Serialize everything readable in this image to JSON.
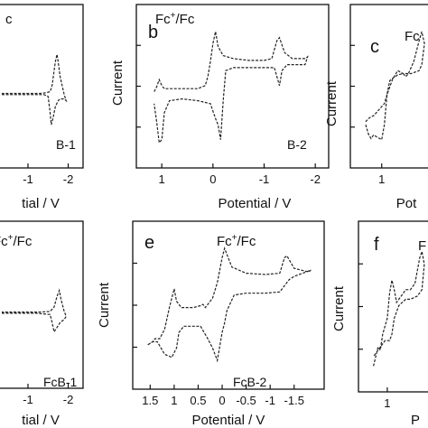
{
  "chart_data": [
    {
      "type": "line",
      "panel_letter": "",
      "legend_top": "c",
      "compound": "B-1",
      "xlabel": "tial / V",
      "ylabel": "",
      "x_ticks": [
        {
          "x": -1,
          "label": "-1"
        },
        {
          "x": -2,
          "label": "-2"
        }
      ],
      "xlim": [
        -0.35,
        -2.1
      ],
      "ylim": [
        -1,
        1
      ],
      "series": [
        {
          "x": [
            -0.35,
            -1.4,
            -1.5,
            -1.55,
            -1.58,
            -1.62,
            -1.68,
            -1.75,
            -1.8,
            -1.85,
            -1.9,
            -1.95,
            -1.9,
            -1.8,
            -1.75,
            -1.72,
            -1.68,
            -1.6,
            -1.55,
            -1.45,
            -1.3,
            -0.35
          ],
          "y": [
            -0.05,
            -0.05,
            -0.08,
            -0.35,
            -0.55,
            -0.45,
            -0.25,
            -0.15,
            -0.12,
            -0.12,
            -0.12,
            -0.15,
            -0.05,
            0.25,
            0.5,
            0.62,
            0.5,
            0.1,
            0.0,
            -0.02,
            -0.03,
            -0.03
          ]
        }
      ]
    },
    {
      "type": "line",
      "panel_letter": "b",
      "legend_top": "Fc+/Fc",
      "compound": "B-2",
      "xlabel": "Potential / V",
      "ylabel": "Current",
      "x_ticks": [
        {
          "x": 1,
          "label": "1"
        },
        {
          "x": 0,
          "label": "0"
        },
        {
          "x": -1,
          "label": "-1"
        },
        {
          "x": -2,
          "label": "-2"
        }
      ],
      "xlim": [
        1.25,
        -2.05
      ],
      "ylim": [
        -1,
        1
      ],
      "series": [
        {
          "x": [
            1.15,
            1.1,
            1.05,
            1.0,
            0.95,
            0.85,
            0.6,
            0.3,
            0.15,
            0.1,
            0.05,
            0.0,
            -0.05,
            -0.1,
            -0.2,
            -0.4,
            -0.7,
            -1.0,
            -1.15,
            -1.25,
            -1.3,
            -1.4,
            -1.55,
            -1.8,
            -1.85,
            -1.8,
            -1.6,
            -1.45,
            -1.35,
            -1.3,
            -1.2,
            -1.0,
            -0.7,
            -0.4,
            -0.25,
            -0.2,
            -0.15,
            -0.1,
            -0.05,
            0.05,
            0.3,
            0.6,
            0.85,
            0.95,
            1.0,
            1.05,
            1.1,
            1.15
          ],
          "y": [
            0.0,
            0.08,
            0.2,
            0.1,
            0.05,
            0.05,
            0.05,
            0.05,
            0.1,
            0.25,
            0.5,
            0.8,
            1.0,
            0.75,
            0.6,
            0.55,
            0.52,
            0.52,
            0.55,
            0.85,
            0.9,
            0.65,
            0.55,
            0.55,
            0.58,
            0.45,
            0.45,
            0.45,
            0.35,
            0.1,
            0.4,
            0.4,
            0.4,
            0.4,
            0.35,
            -0.15,
            -0.8,
            -0.55,
            -0.45,
            -0.2,
            -0.15,
            -0.12,
            -0.15,
            -0.35,
            -0.8,
            -0.85,
            -0.5,
            -0.2
          ]
        }
      ]
    },
    {
      "type": "line",
      "panel_letter": "c",
      "legend_top": "Fc",
      "compound": "",
      "xlabel": "Pot",
      "ylabel": "Current",
      "x_ticks": [
        {
          "x": 1,
          "label": "1"
        }
      ],
      "xlim": [
        1.35,
        0.1
      ],
      "ylim": [
        -1,
        1
      ],
      "series": [
        {
          "x": [
            1.3,
            1.25,
            1.2,
            1.15,
            1.1,
            1.0,
            0.95,
            0.9,
            0.85,
            0.8,
            0.7,
            0.6,
            0.55,
            0.5,
            0.4,
            0.3,
            0.25,
            0.2,
            0.25,
            0.3,
            0.45,
            0.6,
            0.7,
            0.8,
            0.9,
            0.95,
            1.0,
            1.1,
            1.15,
            1.2,
            1.25,
            1.3
          ],
          "y": [
            -0.55,
            -0.7,
            -0.78,
            -0.72,
            -0.75,
            -0.8,
            -0.55,
            -0.05,
            0.18,
            0.22,
            0.28,
            0.3,
            0.25,
            0.3,
            0.5,
            0.85,
            1.0,
            0.8,
            0.45,
            0.35,
            0.3,
            0.3,
            0.35,
            0.2,
            -0.05,
            -0.2,
            -0.25,
            -0.35,
            -0.4,
            -0.42,
            -0.45,
            -0.5
          ]
        }
      ]
    },
    {
      "type": "line",
      "panel_letter": "",
      "legend_top": "Fc+/Fc",
      "compound": "FcB-1",
      "xlabel": "tial / V",
      "ylabel": "",
      "x_ticks": [
        {
          "x": -1,
          "label": "-1"
        },
        {
          "x": -2,
          "label": "-2"
        }
      ],
      "xlim": [
        -0.35,
        -2.1
      ],
      "ylim": [
        -1,
        1
      ],
      "series": [
        {
          "x": [
            -0.35,
            -1.2,
            -1.55,
            -1.6,
            -1.65,
            -1.72,
            -1.8,
            -1.9,
            -1.95,
            -1.9,
            -1.82,
            -1.78,
            -1.72,
            -1.65,
            -1.55,
            -1.3,
            -0.35
          ],
          "y": [
            -0.05,
            -0.05,
            -0.07,
            -0.2,
            -0.35,
            -0.28,
            -0.2,
            -0.15,
            -0.1,
            -0.02,
            0.18,
            0.32,
            0.22,
            0.05,
            -0.02,
            -0.03,
            -0.03
          ]
        }
      ]
    },
    {
      "type": "line",
      "panel_letter": "e",
      "legend_top": "Fc+/Fc",
      "compound": "FcB-2",
      "xlabel": "Potential / V",
      "ylabel": "Current",
      "x_ticks": [
        {
          "x": 1.5,
          "label": "1.5"
        },
        {
          "x": 1,
          "label": "1"
        },
        {
          "x": 0.5,
          "label": "0.5"
        },
        {
          "x": 0,
          "label": "0"
        },
        {
          "x": -0.5,
          "label": "-0.5"
        },
        {
          "x": -1,
          "label": "-1"
        },
        {
          "x": -1.5,
          "label": "-1.5"
        }
      ],
      "xlim": [
        1.6,
        -1.9
      ],
      "ylim": [
        -1,
        1
      ],
      "series": [
        {
          "x": [
            1.55,
            1.45,
            1.4,
            1.3,
            1.2,
            1.1,
            1.0,
            0.95,
            0.85,
            0.6,
            0.45,
            0.4,
            0.35,
            0.3,
            0.2,
            0.1,
            0.0,
            -0.05,
            -0.2,
            -0.5,
            -0.9,
            -1.2,
            -1.3,
            -1.35,
            -1.5,
            -1.8,
            -1.85,
            -1.75,
            -1.5,
            -1.4,
            -1.3,
            -1.2,
            -0.9,
            -0.5,
            -0.25,
            -0.1,
            -0.05,
            0.0,
            0.1,
            0.2,
            0.3,
            0.45,
            0.6,
            0.8,
            0.9,
            0.95,
            1.05,
            1.2,
            1.35,
            1.45,
            1.55
          ],
          "y": [
            -0.55,
            -0.5,
            -0.45,
            -0.45,
            -0.3,
            0.05,
            0.35,
            0.15,
            0.05,
            0.05,
            0.08,
            0.1,
            0.05,
            0.1,
            0.2,
            0.45,
            0.85,
            1.0,
            0.7,
            0.6,
            0.58,
            0.6,
            0.85,
            0.88,
            0.68,
            0.62,
            0.65,
            0.62,
            0.55,
            0.5,
            0.4,
            0.3,
            0.28,
            0.28,
            0.25,
            0.0,
            -0.2,
            -0.35,
            -0.8,
            -0.6,
            -0.45,
            -0.25,
            -0.25,
            -0.25,
            -0.35,
            -0.6,
            -0.75,
            -0.7,
            -0.5,
            -0.5,
            -0.55
          ]
        }
      ]
    },
    {
      "type": "line",
      "panel_letter": "f",
      "legend_top": "F",
      "compound": "",
      "xlabel": "P",
      "ylabel": "Current",
      "x_ticks": [
        {
          "x": 1,
          "label": "1"
        }
      ],
      "xlim": [
        1.35,
        0.1
      ],
      "ylim": [
        -1,
        1
      ],
      "series": [
        {
          "x": [
            1.3,
            1.25,
            1.2,
            1.15,
            1.1,
            1.0,
            0.95,
            0.9,
            0.85,
            0.8,
            0.7,
            0.6,
            0.5,
            0.4,
            0.3,
            0.25,
            0.2,
            0.25,
            0.35,
            0.5,
            0.6,
            0.75,
            0.85,
            0.9,
            0.95,
            1.05,
            1.1,
            1.2,
            1.3
          ],
          "y": [
            -0.85,
            -0.7,
            -0.55,
            -0.6,
            -0.35,
            -0.1,
            0.3,
            0.5,
            0.35,
            0.15,
            0.25,
            0.35,
            0.35,
            0.45,
            0.85,
            0.95,
            0.75,
            0.35,
            0.25,
            0.2,
            0.2,
            0.1,
            -0.1,
            -0.35,
            -0.45,
            -0.45,
            -0.5,
            -0.6,
            -0.7
          ]
        }
      ]
    }
  ]
}
